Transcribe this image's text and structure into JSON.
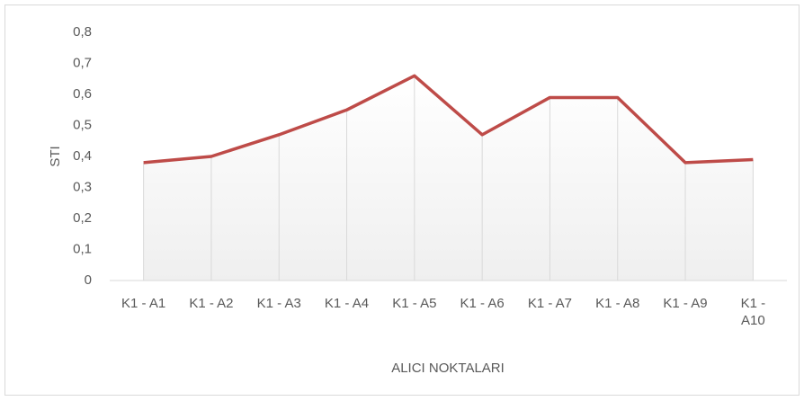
{
  "chart_data": {
    "type": "line",
    "categories": [
      "K1 - A1",
      "K1 - A2",
      "K1 - A3",
      "K1 - A4",
      "K1 - A5",
      "K1 - A6",
      "K1 - A7",
      "K1 - A8",
      "K1 - A9",
      "K1 - A10"
    ],
    "values": [
      0.38,
      0.4,
      0.47,
      0.55,
      0.66,
      0.47,
      0.59,
      0.59,
      0.38,
      0.39
    ],
    "color": "#be4b48",
    "y_label": "STI",
    "x_label": "ALICI NOKTALARI",
    "ylim": [
      0,
      0.8
    ],
    "yticks": [
      0,
      {
        "value": 0.1,
        "label": "0,1"
      },
      {
        "value": 0.2,
        "label": "0,2"
      },
      {
        "value": 0.3,
        "label": "0,3"
      },
      {
        "value": 0.4,
        "label": "0,4"
      },
      {
        "value": 0.5,
        "label": "0,5"
      },
      {
        "value": 0.6,
        "label": "0,6"
      },
      {
        "value": 0.7,
        "label": "0,7"
      },
      {
        "value": 0.8,
        "label": "0,8"
      }
    ],
    "grid": false
  }
}
